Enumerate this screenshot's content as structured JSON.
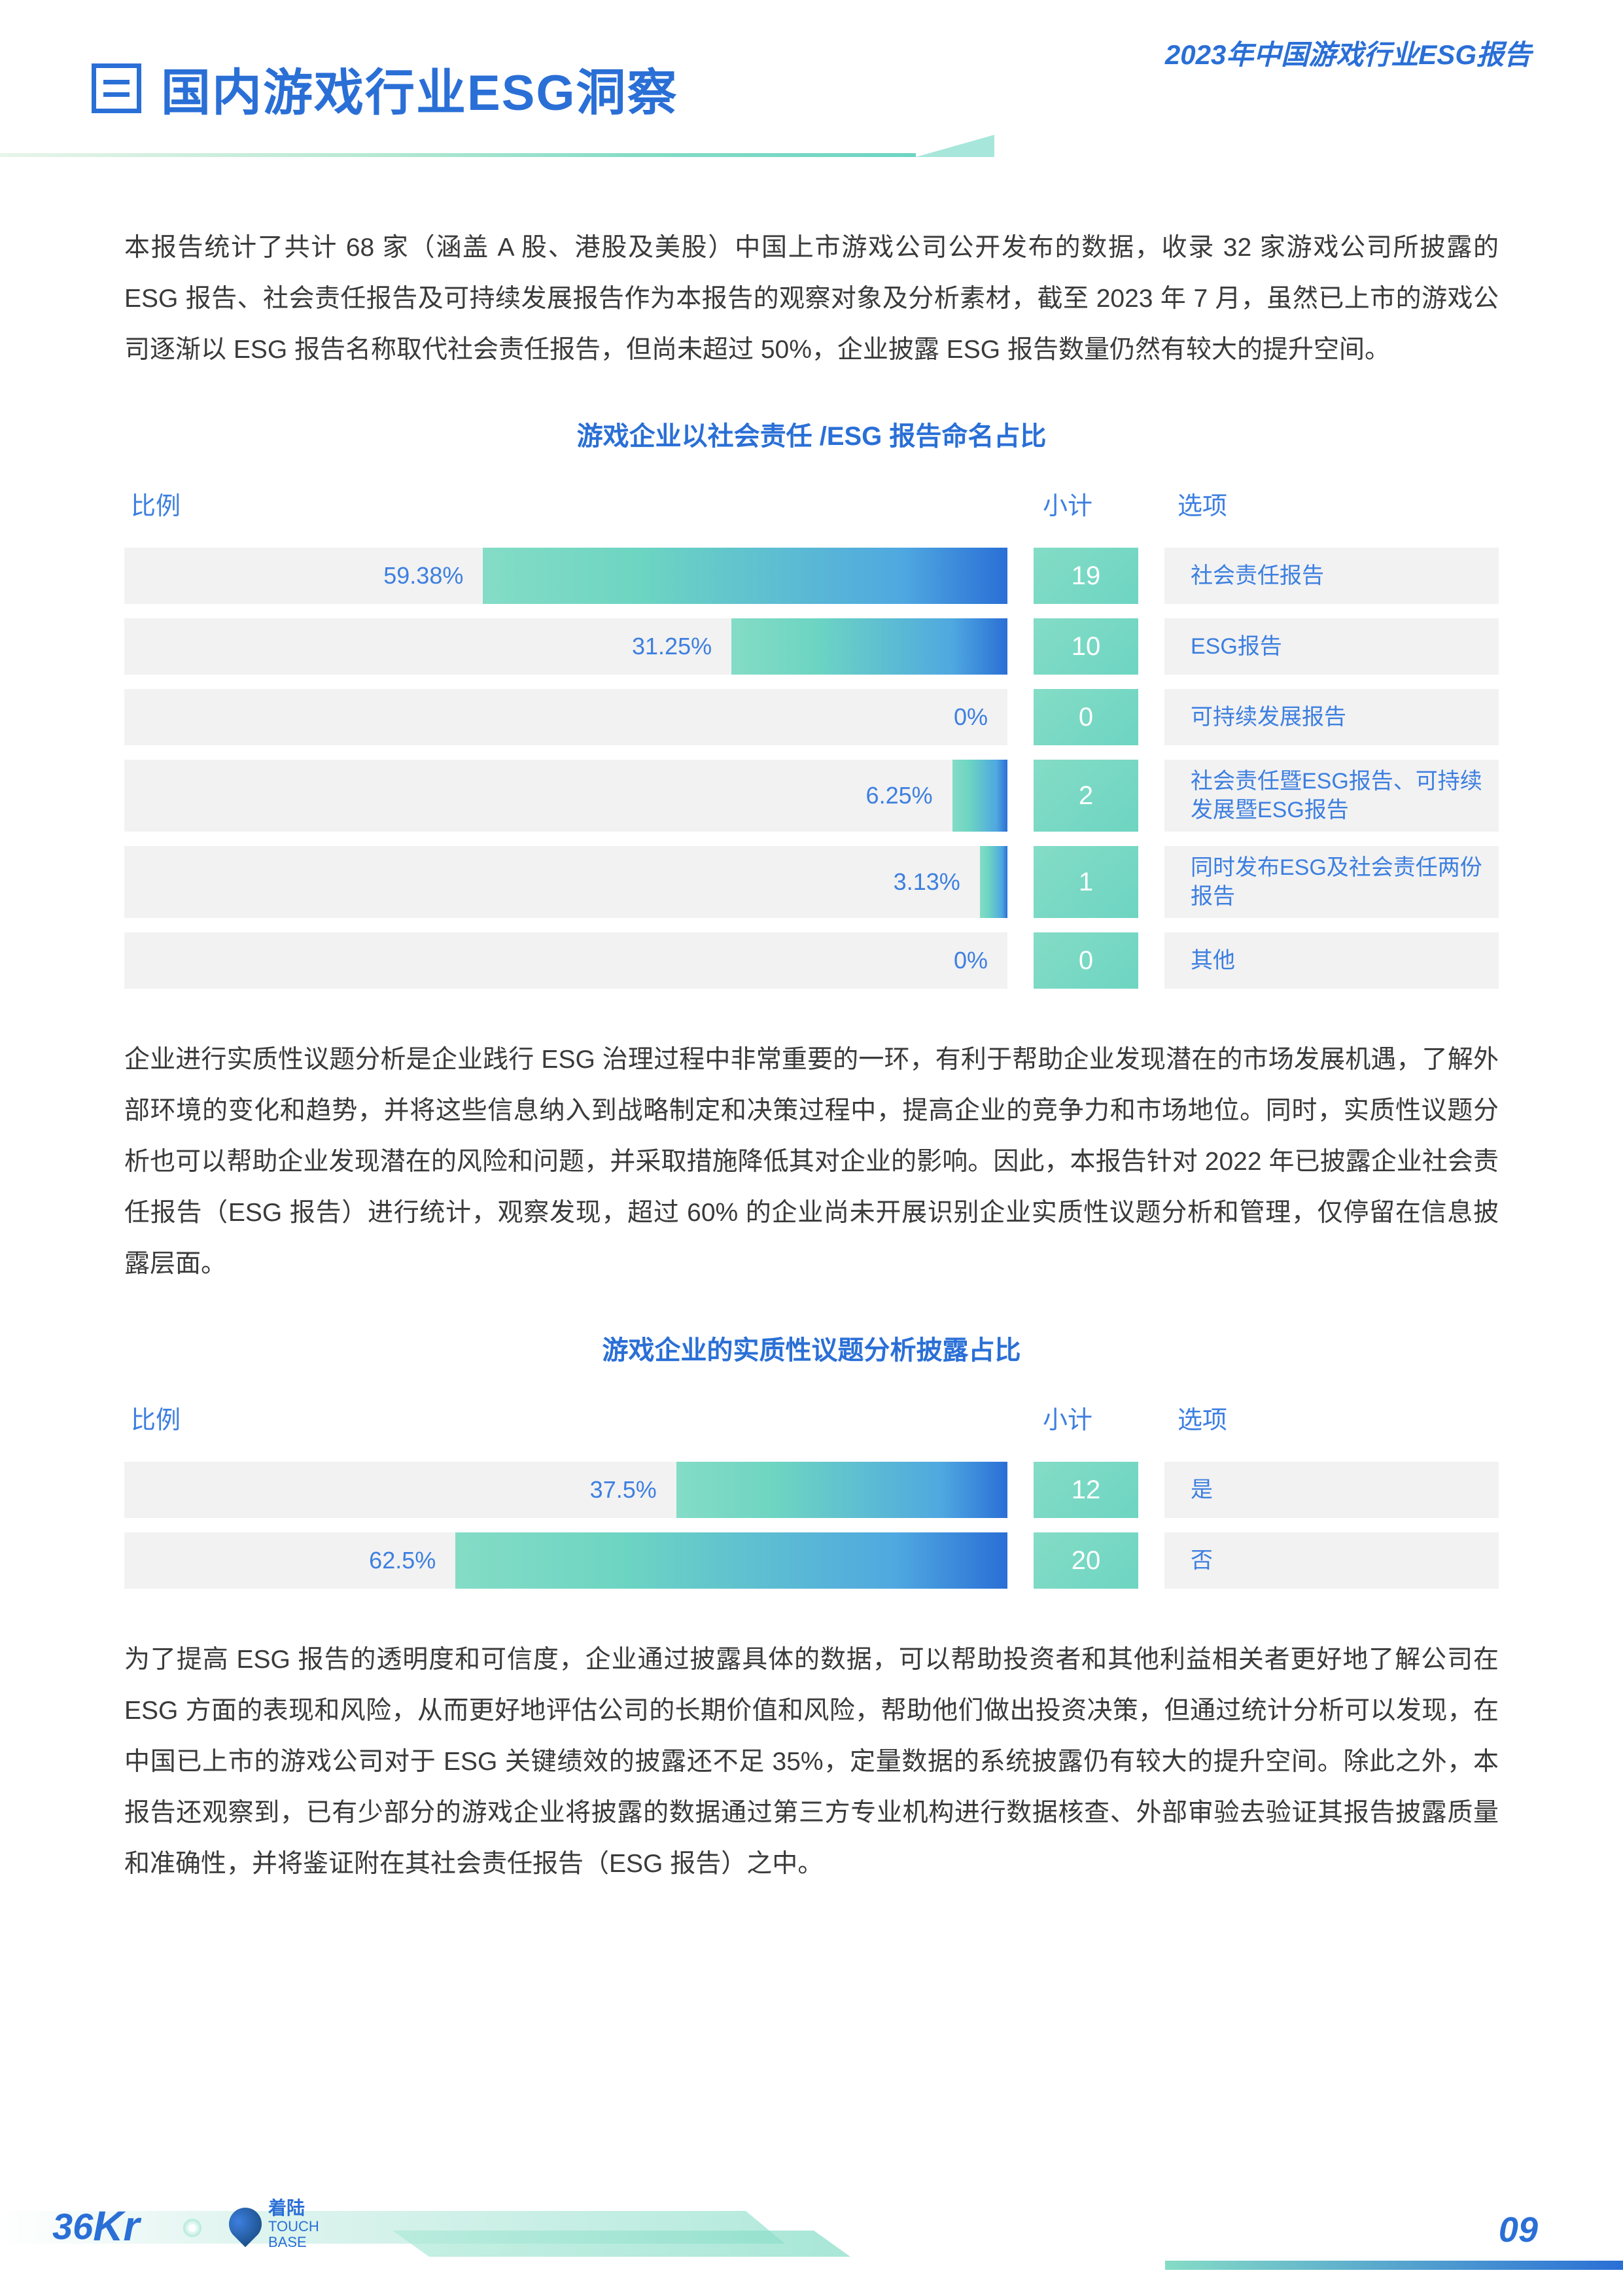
{
  "header": {
    "top_right": "2023年中国游戏行业ESG报告",
    "title": "国内游戏行业ESG洞察"
  },
  "intro_paragraph": "本报告统计了共计 68 家（涵盖 A 股、港股及美股）中国上市游戏公司公开发布的数据，收录 32 家游戏公司所披露的 ESG 报告、社会责任报告及可持续发展报告作为本报告的观察对象及分析素材，截至 2023 年 7 月，虽然已上市的游戏公司逐渐以 ESG 报告名称取代社会责任报告，但尚未超过 50%，企业披露 ESG 报告数量仍然有较大的提升空间。",
  "chart1": {
    "title": "游戏企业以社会责任 /ESG 报告命名占比",
    "headers": {
      "ratio": "比例",
      "count": "小计",
      "option": "选项"
    },
    "bar_bg": "#f2f2f2",
    "bar_gradient": [
      "#84dcc6",
      "#2a6fd6"
    ],
    "count_bg": [
      "#84dcc6",
      "#6dd5c2"
    ],
    "text_color": "#3d7fe0",
    "rows": [
      {
        "percent": 59.38,
        "percent_label": "59.38%",
        "count": "19",
        "option": "社会责任报告"
      },
      {
        "percent": 31.25,
        "percent_label": "31.25%",
        "count": "10",
        "option": "ESG报告"
      },
      {
        "percent": 0,
        "percent_label": "0%",
        "count": "0",
        "option": "可持续发展报告"
      },
      {
        "percent": 6.25,
        "percent_label": "6.25%",
        "count": "2",
        "option": "社会责任暨ESG报告、可持续发展暨ESG报告"
      },
      {
        "percent": 3.13,
        "percent_label": "3.13%",
        "count": "1",
        "option": "同时发布ESG及社会责任两份报告"
      },
      {
        "percent": 0,
        "percent_label": "0%",
        "count": "0",
        "option": "其他"
      }
    ]
  },
  "middle_paragraph": "企业进行实质性议题分析是企业践行 ESG 治理过程中非常重要的一环，有利于帮助企业发现潜在的市场发展机遇，了解外部环境的变化和趋势，并将这些信息纳入到战略制定和决策过程中，提高企业的竞争力和市场地位。同时，实质性议题分析也可以帮助企业发现潜在的风险和问题，并采取措施降低其对企业的影响。因此，本报告针对 2022 年已披露企业社会责任报告（ESG 报告）进行统计，观察发现，超过 60% 的企业尚未开展识别企业实质性议题分析和管理，仅停留在信息披露层面。",
  "chart2": {
    "title": "游戏企业的实质性议题分析披露占比",
    "headers": {
      "ratio": "比例",
      "count": "小计",
      "option": "选项"
    },
    "rows": [
      {
        "percent": 37.5,
        "percent_label": "37.5%",
        "count": "12",
        "option": "是"
      },
      {
        "percent": 62.5,
        "percent_label": "62.5%",
        "count": "20",
        "option": "否"
      }
    ]
  },
  "bottom_paragraph": "为了提高 ESG 报告的透明度和可信度，企业通过披露具体的数据，可以帮助投资者和其他利益相关者更好地了解公司在 ESG 方面的表现和风险，从而更好地评估公司的长期价值和风险，帮助他们做出投资决策，但通过统计分析可以发现，在中国已上市的游戏公司对于 ESG 关键绩效的披露还不足 35%，定量数据的系统披露仍有较大的提升空间。除此之外，本报告还观察到，已有少部分的游戏企业将披露的数据通过第三方专业机构进行数据核查、外部审验去验证其报告披露质量和准确性，并将鉴证附在其社会责任报告（ESG 报告）之中。",
  "footer": {
    "logo1": "36",
    "logo1k": "Kr",
    "logo2_cn": "着陆",
    "logo2_en1": "TOUCH",
    "logo2_en2": "BASE",
    "page": "09"
  },
  "colors": {
    "primary_blue": "#2a6fd6",
    "text_blue": "#3d7fe0",
    "teal": "#84dcc6",
    "bar_bg": "#f2f2f2",
    "body_text": "#3a3a3a"
  }
}
